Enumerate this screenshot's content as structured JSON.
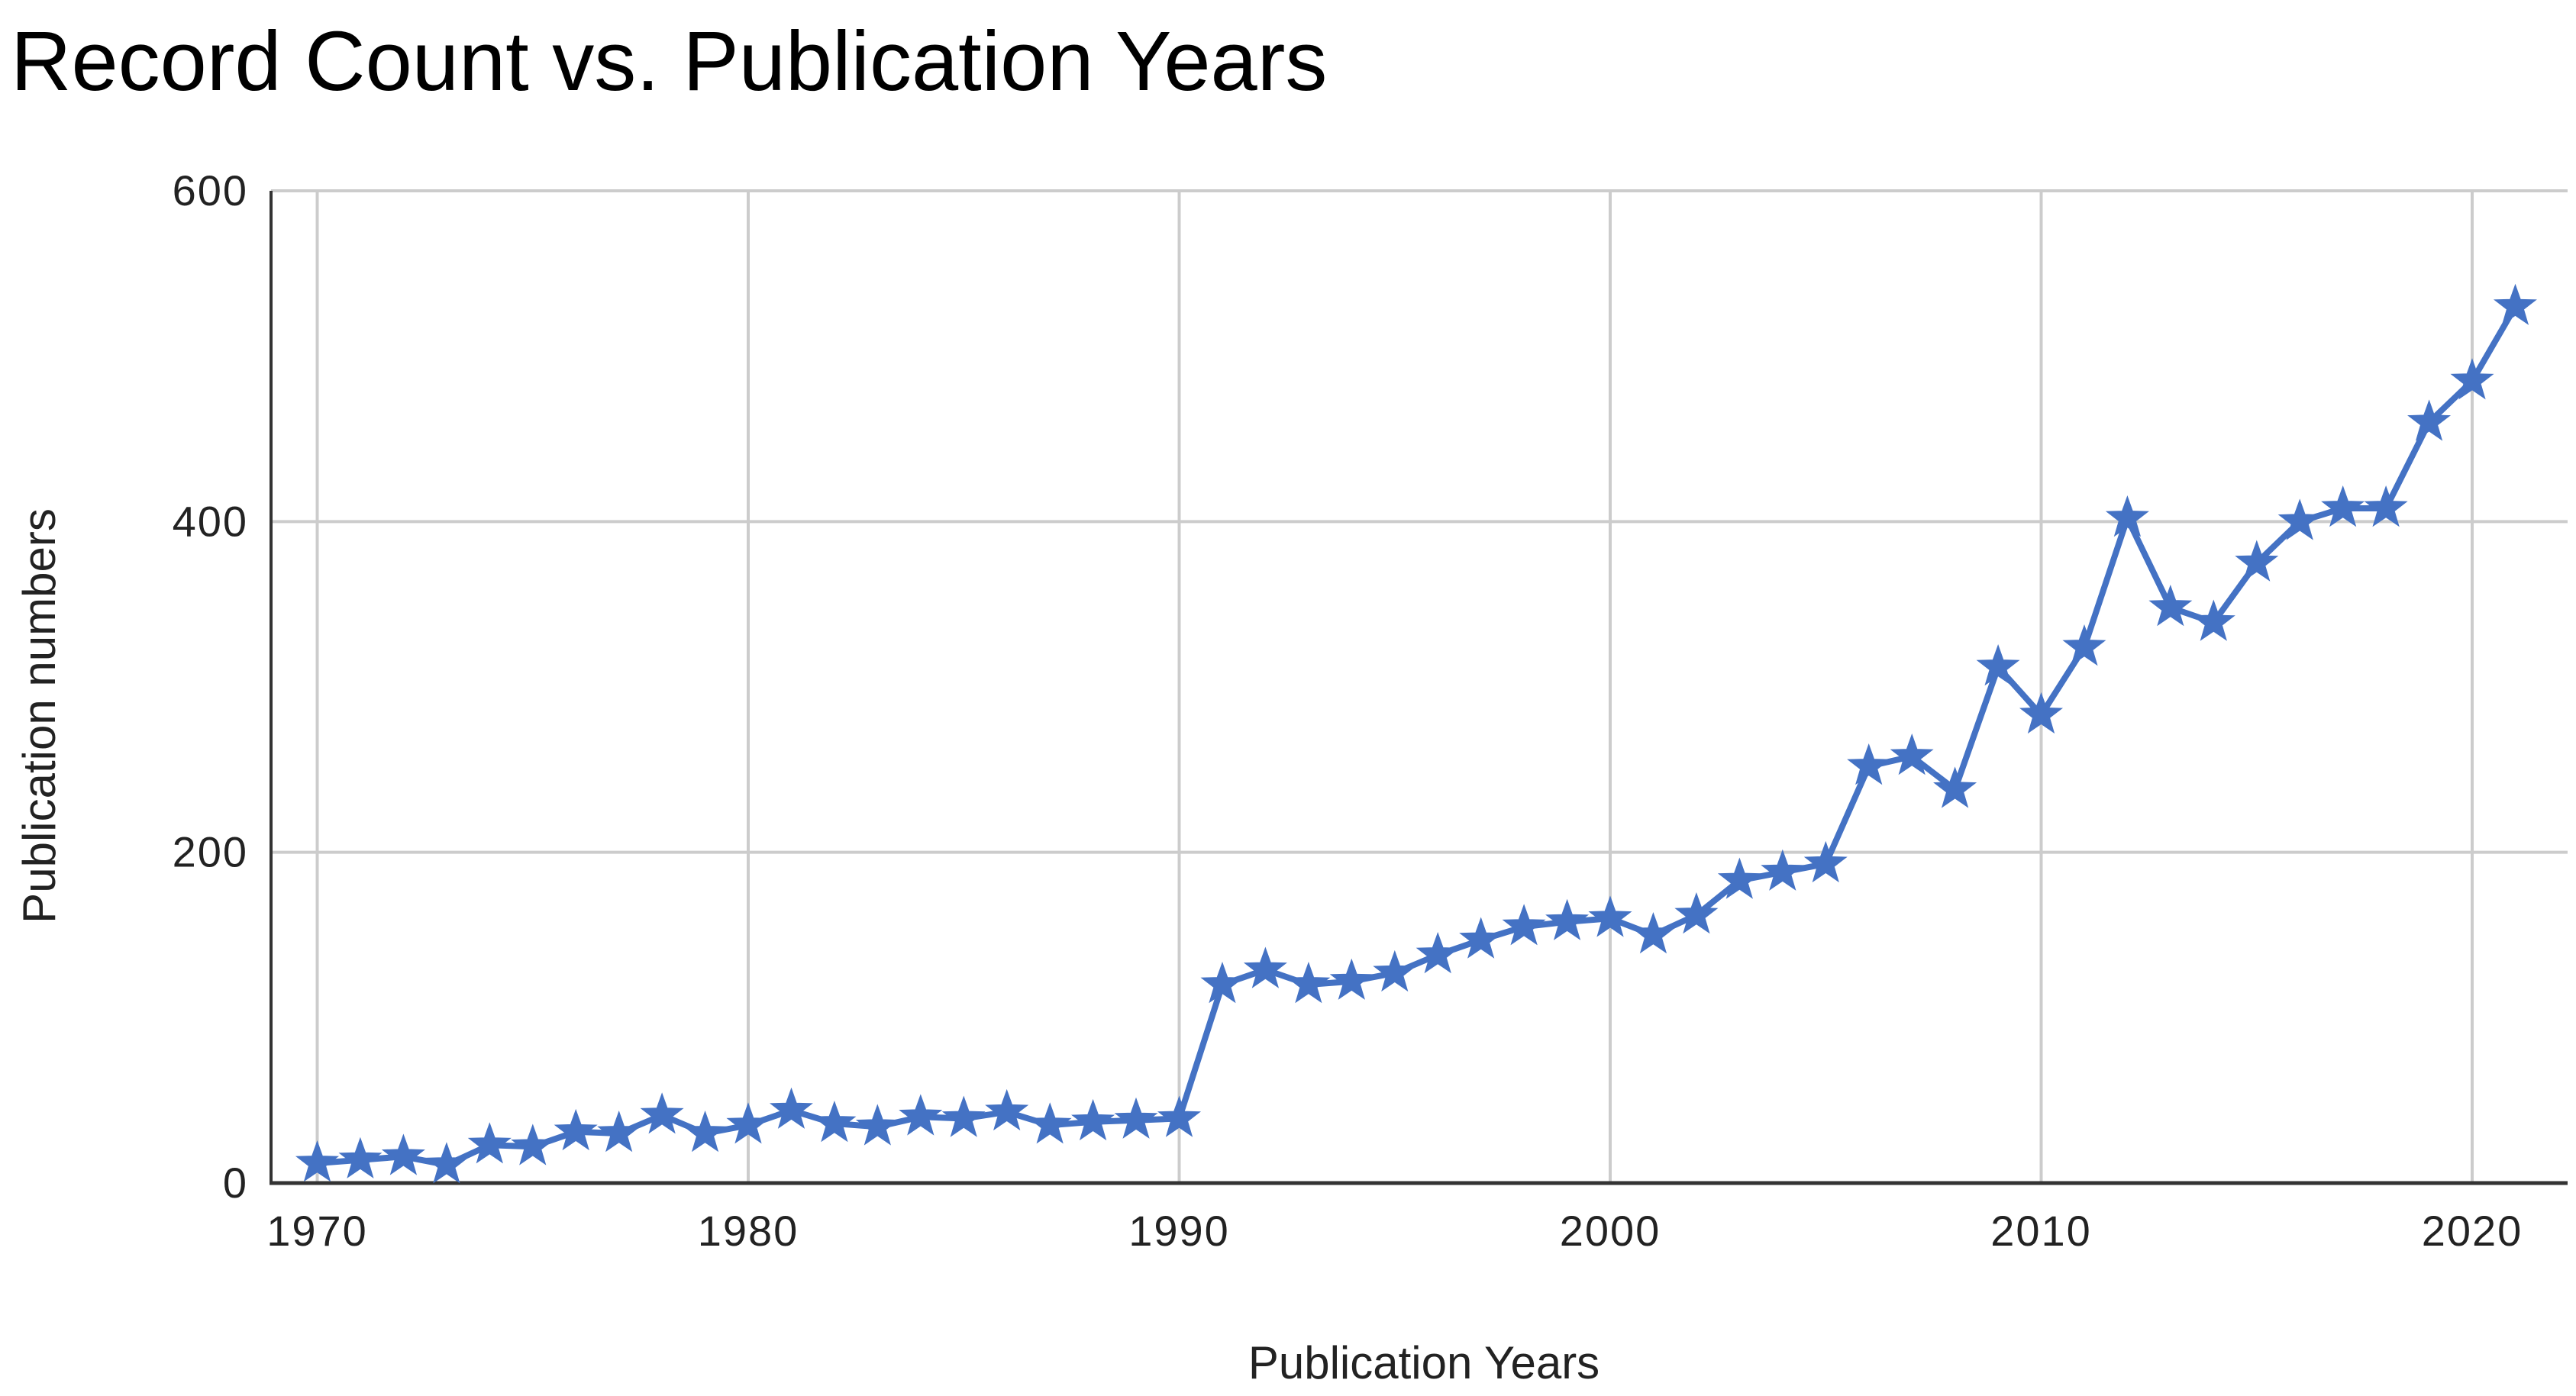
{
  "chart_data": {
    "type": "line",
    "title": "Record Count vs. Publication Years",
    "xlabel": "Publication Years",
    "ylabel": "Publication numbers",
    "xlim": [
      1969,
      2022
    ],
    "ylim": [
      0,
      600
    ],
    "x_ticks": [
      1970,
      1980,
      1990,
      2000,
      2010,
      2020
    ],
    "y_ticks": [
      0,
      200,
      400,
      600
    ],
    "grid": true,
    "legend": "none",
    "marker": "star",
    "colors": {
      "series": "#4472C4",
      "grid": "#cccccc",
      "axis": "#333333"
    },
    "series": [
      {
        "x": [
          1970,
          1971,
          1972,
          1973,
          1974,
          1975,
          1976,
          1977,
          1978,
          1979,
          1980,
          1981,
          1982,
          1983,
          1984,
          1985,
          1986,
          1987,
          1988,
          1989,
          1990,
          1991,
          1992,
          1993,
          1994,
          1995,
          1996,
          1997,
          1998,
          1999,
          2000,
          2001,
          2002,
          2003,
          2004,
          2005,
          2006,
          2007,
          2008,
          2009,
          2010,
          2011,
          2012,
          2013,
          2014,
          2015,
          2016,
          2017,
          2018,
          2019,
          2020,
          2021
        ],
        "values": [
          12,
          14,
          16,
          11,
          23,
          22,
          31,
          30,
          41,
          30,
          35,
          44,
          36,
          34,
          40,
          39,
          43,
          35,
          37,
          38,
          39,
          120,
          129,
          120,
          122,
          127,
          138,
          147,
          155,
          158,
          160,
          150,
          162,
          183,
          188,
          193,
          252,
          258,
          238,
          312,
          283,
          324,
          402,
          348,
          339,
          375,
          400,
          408,
          408,
          460,
          485,
          530
        ]
      }
    ]
  }
}
